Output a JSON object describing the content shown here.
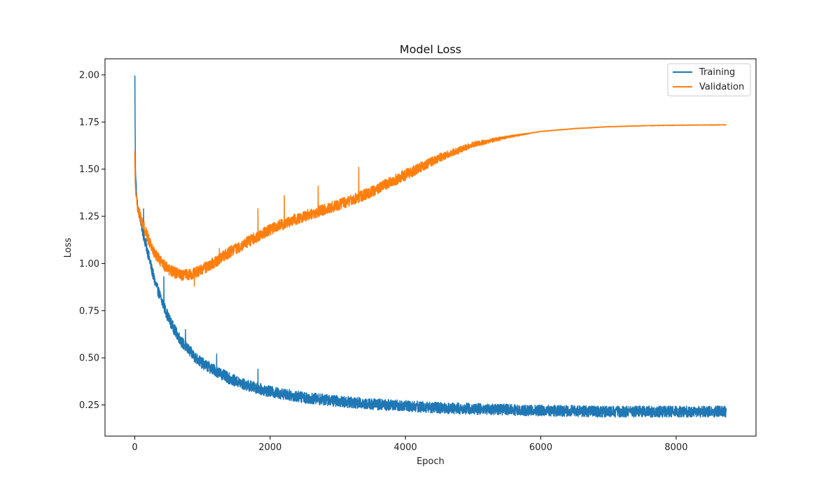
{
  "chart_data": {
    "type": "line",
    "title": "Model Loss",
    "xlabel": "Epoch",
    "ylabel": "Loss",
    "xlim": [
      -440,
      9180
    ],
    "ylim": [
      0.085,
      2.085
    ],
    "x_ticks": [
      0,
      2000,
      4000,
      6000,
      8000
    ],
    "x_tick_labels": [
      "0",
      "2000",
      "4000",
      "6000",
      "8000"
    ],
    "y_ticks": [
      0.25,
      0.5,
      0.75,
      1.0,
      1.25,
      1.5,
      1.75,
      2.0
    ],
    "y_tick_labels": [
      "0.25",
      "0.50",
      "0.75",
      "1.00",
      "1.25",
      "1.50",
      "1.75",
      "2.00"
    ],
    "grid": false,
    "legend_position": "top-right",
    "x_max": 8740,
    "series": [
      {
        "name": "Training",
        "color": "#1f77b4",
        "x": [
          0,
          5,
          10,
          20,
          30,
          50,
          75,
          100,
          150,
          200,
          250,
          300,
          400,
          500,
          600,
          700,
          800,
          900,
          1000,
          1200,
          1400,
          1600,
          1800,
          2000,
          2500,
          3000,
          3500,
          4000,
          4500,
          5000,
          5500,
          6000,
          7000,
          8000,
          8740
        ],
        "y": [
          1.99,
          1.75,
          1.5,
          1.42,
          1.35,
          1.28,
          1.24,
          1.2,
          1.12,
          1.05,
          0.97,
          0.9,
          0.8,
          0.71,
          0.64,
          0.58,
          0.54,
          0.5,
          0.47,
          0.43,
          0.39,
          0.36,
          0.34,
          0.32,
          0.29,
          0.27,
          0.255,
          0.245,
          0.235,
          0.23,
          0.225,
          0.22,
          0.215,
          0.215,
          0.215
        ],
        "noise": 0.03,
        "spikes": [
          [
            1,
            1.99
          ],
          [
            1820,
            0.44
          ],
          [
            1210,
            0.52
          ],
          [
            750,
            0.65
          ],
          [
            430,
            0.93
          ],
          [
            130,
            1.29
          ]
        ]
      },
      {
        "name": "Validation",
        "color": "#ff7f0e",
        "x": [
          0,
          5,
          10,
          20,
          30,
          50,
          75,
          100,
          150,
          200,
          300,
          400,
          500,
          600,
          700,
          800,
          900,
          1000,
          1200,
          1400,
          1600,
          1800,
          2000,
          2200,
          2500,
          3000,
          3300,
          3500,
          4000,
          4500,
          5000,
          5500,
          6000,
          6500,
          7000,
          7500,
          8000,
          8740
        ],
        "y": [
          1.58,
          1.45,
          1.4,
          1.35,
          1.32,
          1.29,
          1.26,
          1.23,
          1.18,
          1.13,
          1.05,
          1.0,
          0.97,
          0.95,
          0.94,
          0.94,
          0.95,
          0.97,
          1.01,
          1.06,
          1.1,
          1.14,
          1.18,
          1.21,
          1.25,
          1.31,
          1.35,
          1.38,
          1.47,
          1.56,
          1.63,
          1.67,
          1.7,
          1.715,
          1.725,
          1.73,
          1.733,
          1.735
        ],
        "noise": 0.03,
        "spikes": [
          [
            3310,
            1.51
          ],
          [
            1820,
            1.29
          ],
          [
            2710,
            1.41
          ],
          [
            2210,
            1.36
          ],
          [
            1250,
            1.08
          ],
          [
            880,
            0.88
          ]
        ]
      }
    ]
  }
}
